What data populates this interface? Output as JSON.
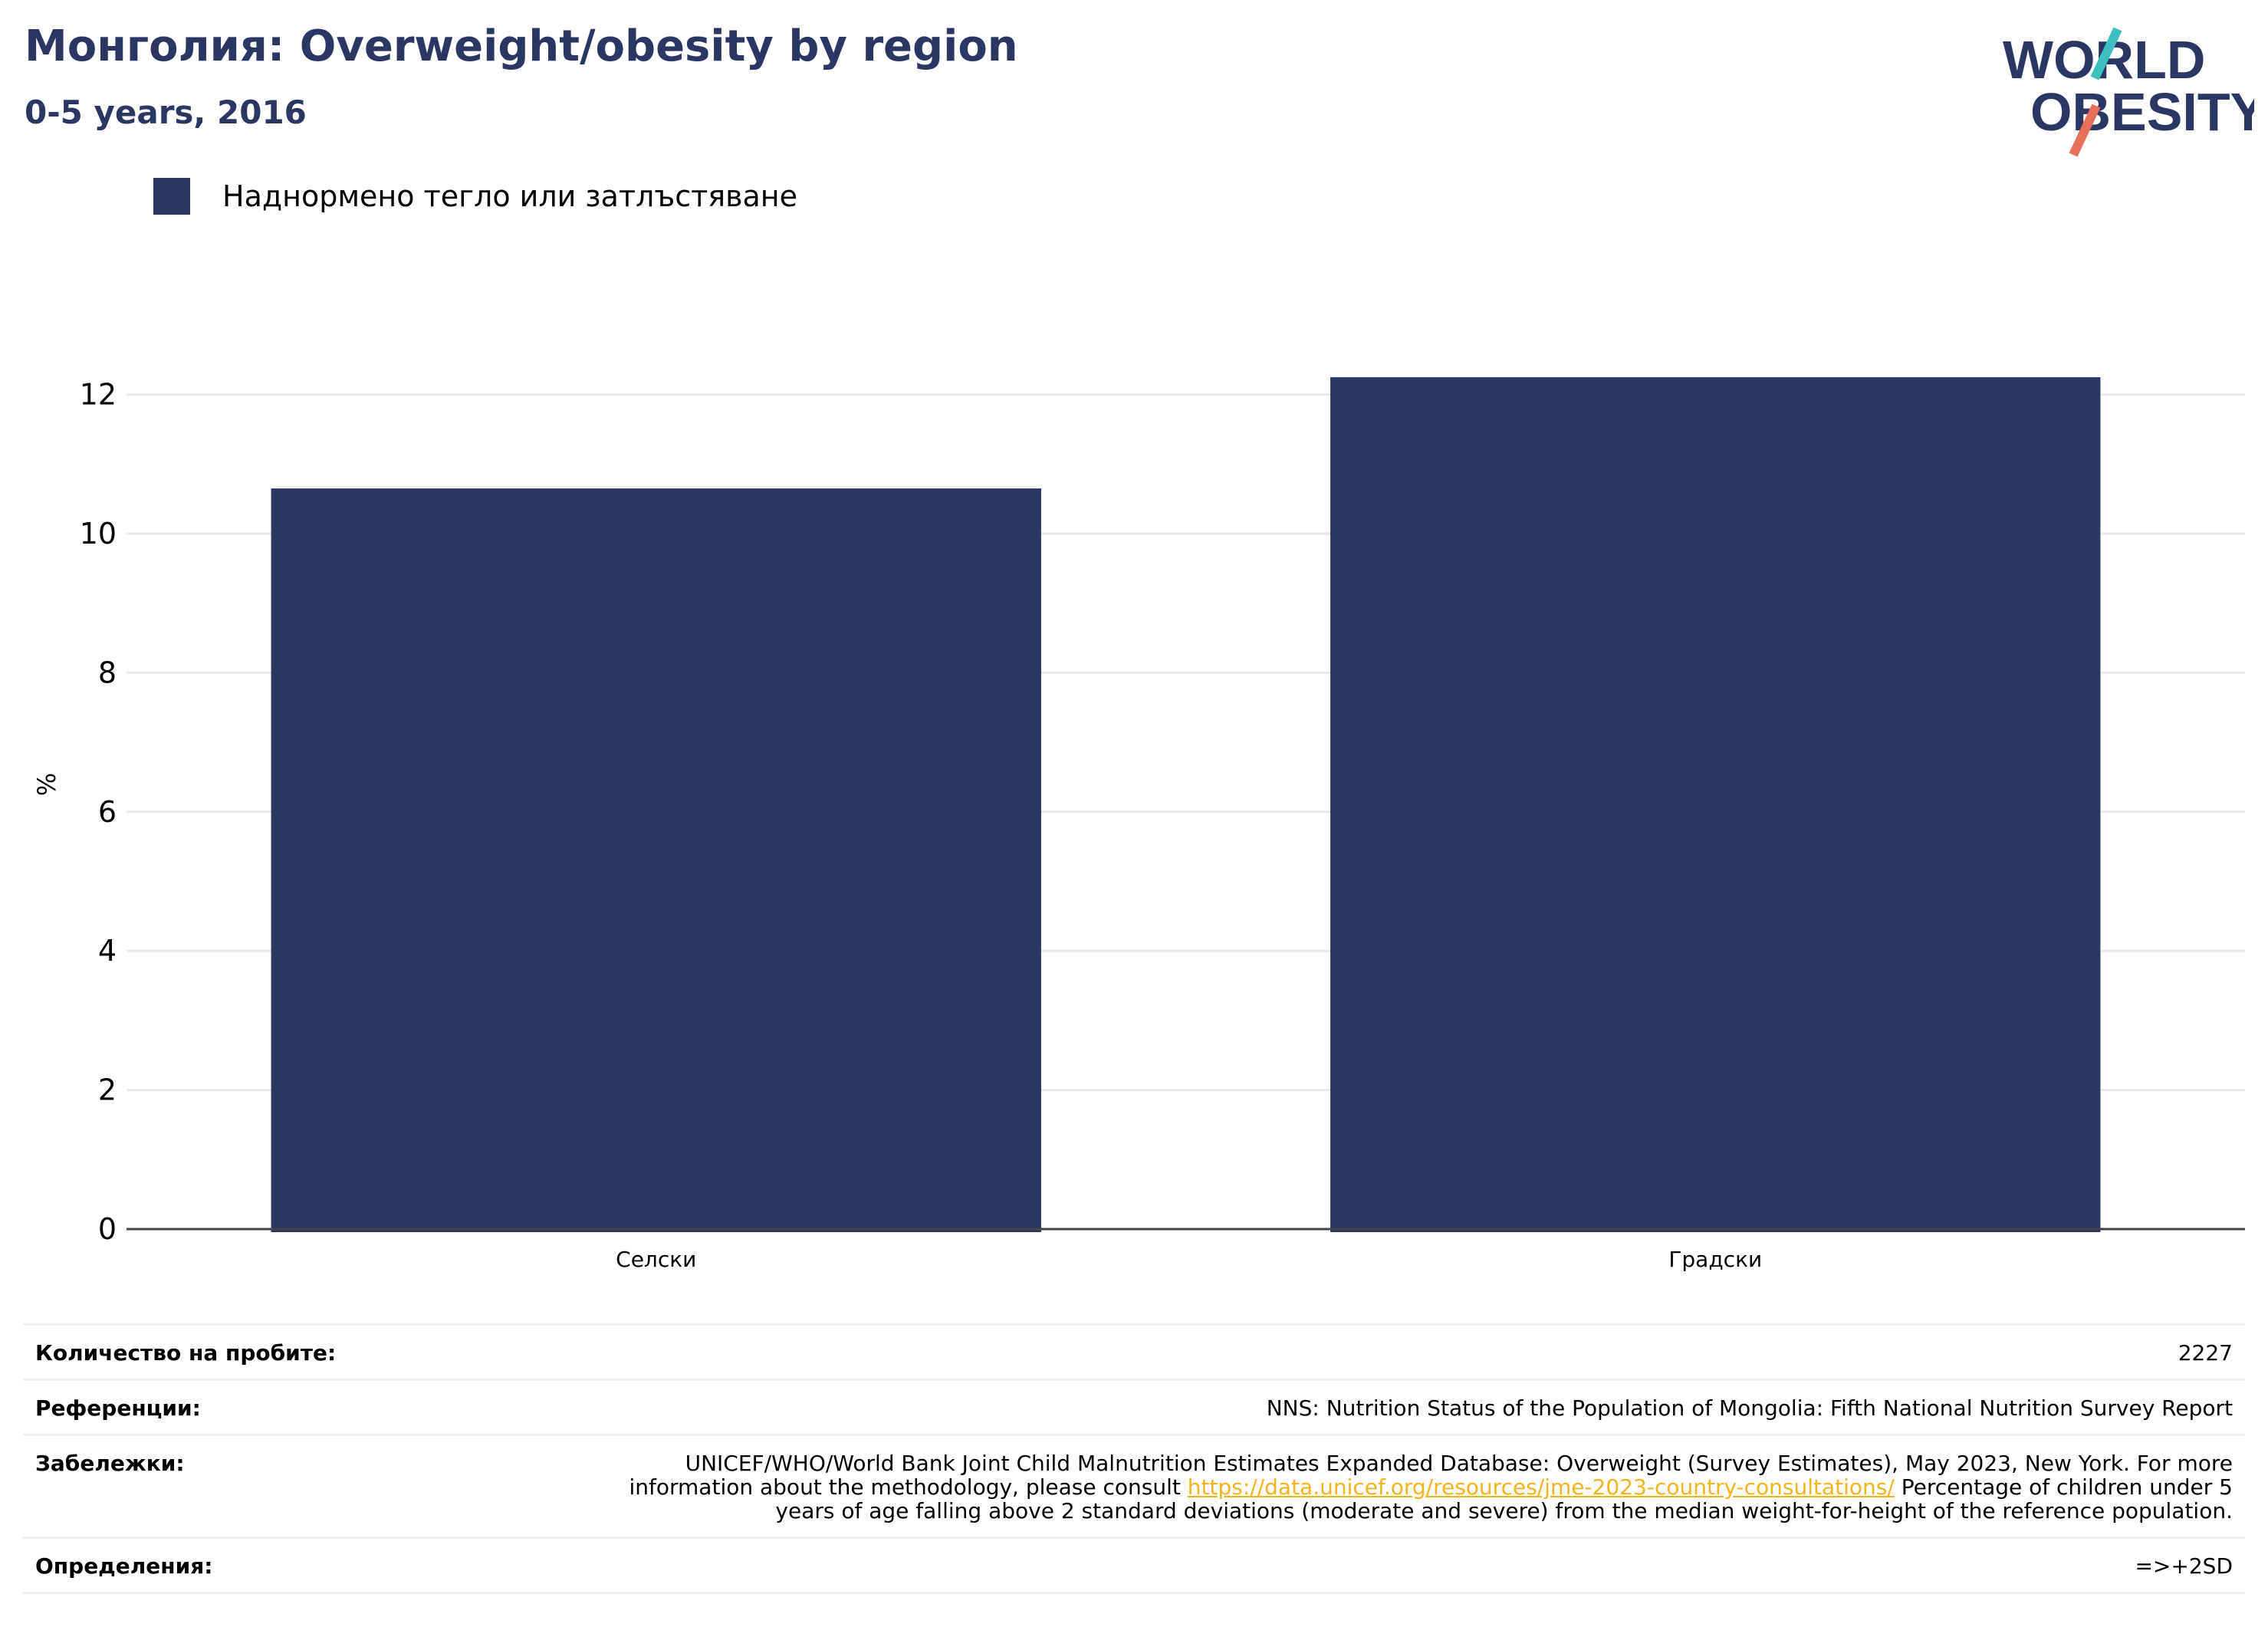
{
  "header": {
    "title": "Монголия: Overweight/obesity by region",
    "subtitle": "0-5 years, 2016"
  },
  "logo": {
    "line1": "WORLD",
    "line2": "OBESITY"
  },
  "colors": {
    "bar": "#2b3763",
    "title": "#2b3763",
    "grid": "#e8e8e8",
    "axis": "#444444",
    "link": "#f0b41c",
    "logo_teal": "#3bbfbf",
    "logo_coral": "#e8705a"
  },
  "chart_data": {
    "type": "bar",
    "categories": [
      "Селски",
      "Градски"
    ],
    "series": [
      {
        "name": "Наднормено тегло или затлъстяване",
        "values": [
          10.65,
          12.25
        ]
      }
    ],
    "ylabel": "%",
    "xlabel": "",
    "ylim": [
      0,
      13
    ],
    "yticks": [
      0,
      2,
      4,
      6,
      8,
      10,
      12
    ],
    "grid": true,
    "legend": "top-left"
  },
  "footer": {
    "sample_label": "Количество на пробите:",
    "sample_value": "2227",
    "references_label": "Референции:",
    "references_value": "NNS: Nutrition Status of the Population of Mongolia: Fifth National Nutrition Survey Report",
    "notes_label": "Забележки:",
    "notes_before": "UNICEF/WHO/World Bank Joint Child Malnutrition Estimates Expanded Database: Overweight (Survey Estimates), May 2023, New York. For more information about the methodology, please consult ",
    "notes_link": "https://data.unicef.org/resources/jme-2023-country-consultations/",
    "notes_after": " Percentage of children under 5 years of age falling above 2 standard deviations (moderate and severe) from the median weight-for-height of the reference population.",
    "definitions_label": "Определения:",
    "definitions_value": "=>+2SD"
  }
}
